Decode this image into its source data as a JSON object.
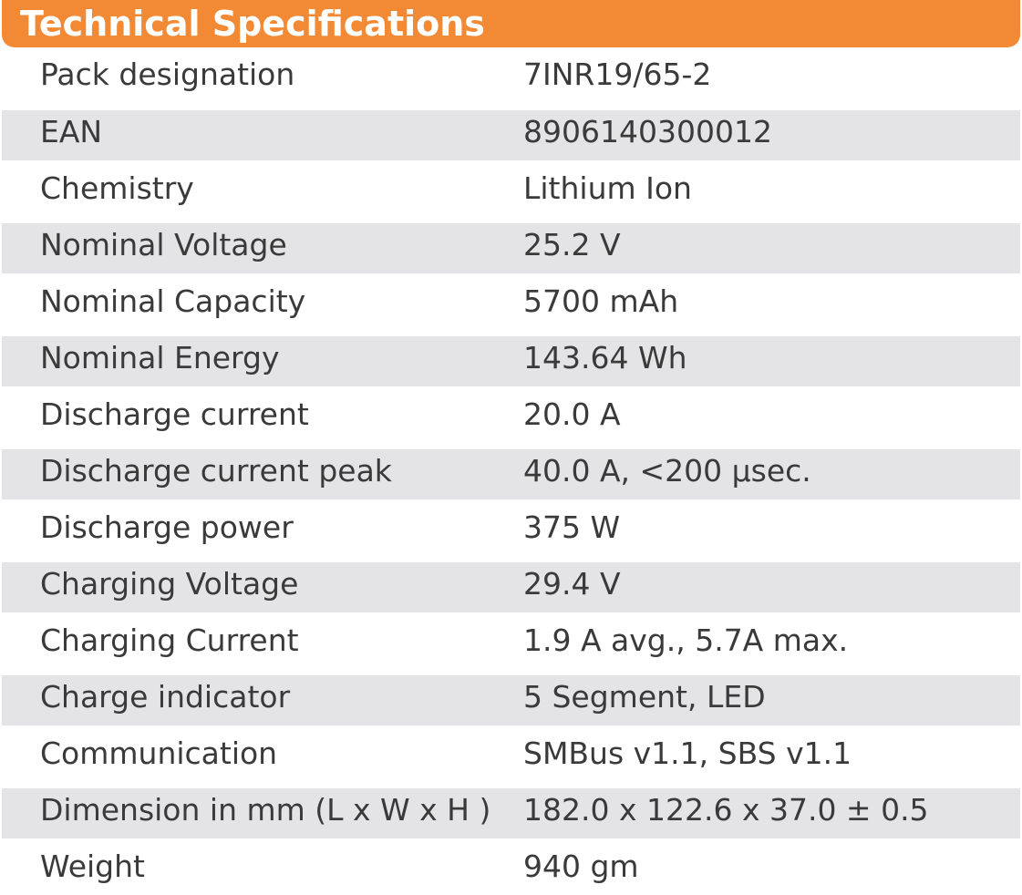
{
  "title": "Technical Specifications",
  "specs": [
    {
      "label": "Pack designation",
      "value": "7INR19/65-2"
    },
    {
      "label": "EAN",
      "value": "8906140300012"
    },
    {
      "label": "Chemistry",
      "value": "Lithium Ion"
    },
    {
      "label": "Nominal Voltage",
      "value": "25.2 V"
    },
    {
      "label": "Nominal Capacity",
      "value": "5700 mAh"
    },
    {
      "label": "Nominal Energy",
      "value": "143.64 Wh"
    },
    {
      "label": "Discharge current",
      "value": "20.0 A"
    },
    {
      "label": "Discharge current peak",
      "value": "40.0 A, <200 µsec."
    },
    {
      "label": "Discharge power",
      "value": "375 W"
    },
    {
      "label": "Charging Voltage",
      "value": "29.4 V"
    },
    {
      "label": "Charging Current",
      "value": "1.9 A avg., 5.7A max."
    },
    {
      "label": "Charge indicator",
      "value": "5 Segment, LED"
    },
    {
      "label": "Communication",
      "value": "SMBus v1.1, SBS v1.1"
    },
    {
      "label": "Dimension in mm (L x W x H )",
      "value": "182.0 x 122.6 x 37.0 ± 0.5"
    },
    {
      "label": "Weight",
      "value": "940 gm"
    }
  ],
  "colors": {
    "header_bg": "#f28a35",
    "header_text": "#ffffff",
    "row_shade": "#e4e4e6",
    "text": "#3a3a3a"
  }
}
